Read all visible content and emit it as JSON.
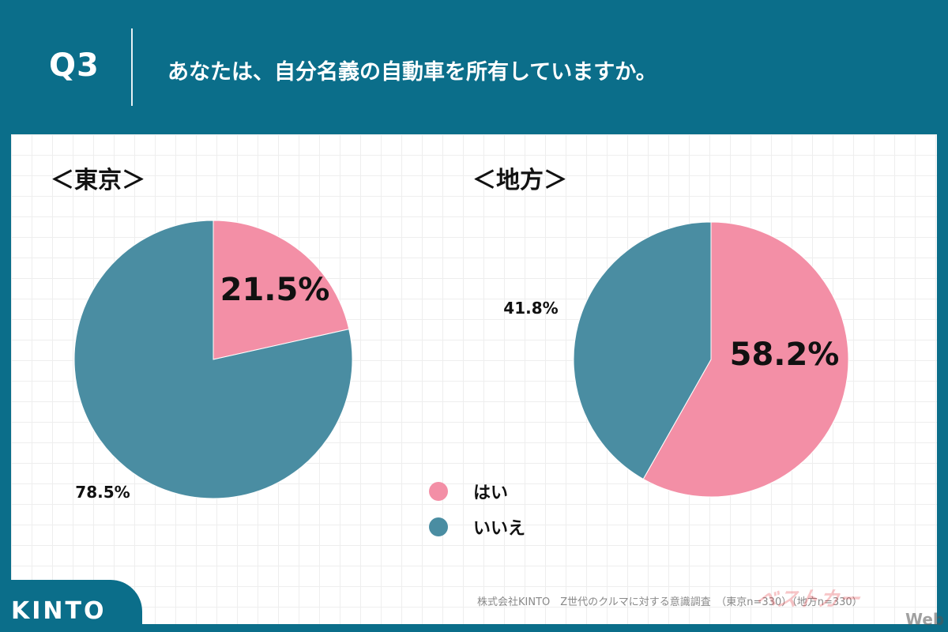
{
  "header": {
    "question_label": "Q3",
    "question_text": "あなたは、自分名義の自動車を所有していますか。"
  },
  "chart_data": [
    {
      "type": "pie",
      "title": "＜東京＞",
      "categories": [
        "はい",
        "いいえ"
      ],
      "values": [
        21.5,
        78.5
      ],
      "labels": [
        "21.5%",
        "78.5%"
      ],
      "colors": [
        "#f38fa6",
        "#4a8da2"
      ]
    },
    {
      "type": "pie",
      "title": "＜地方＞",
      "categories": [
        "はい",
        "いいえ"
      ],
      "values": [
        58.2,
        41.8
      ],
      "labels": [
        "58.2%",
        "41.8%"
      ],
      "colors": [
        "#f38fa6",
        "#4a8da2"
      ]
    }
  ],
  "legend": {
    "position": "bottom-center",
    "items": [
      {
        "label": "はい",
        "color": "#f38fa6"
      },
      {
        "label": "いいえ",
        "color": "#4a8da2"
      }
    ]
  },
  "footer": {
    "source": "株式会社KINTO　Z世代のクルマに対する意識調査　（東京n=330）（地方n=330）",
    "brand": "KINTO",
    "watermark": "ベストカー",
    "watermark_suffix": "Web"
  },
  "colors": {
    "header_bg": "#0b6e8a",
    "yes": "#f38fa6",
    "no": "#4a8da2"
  }
}
